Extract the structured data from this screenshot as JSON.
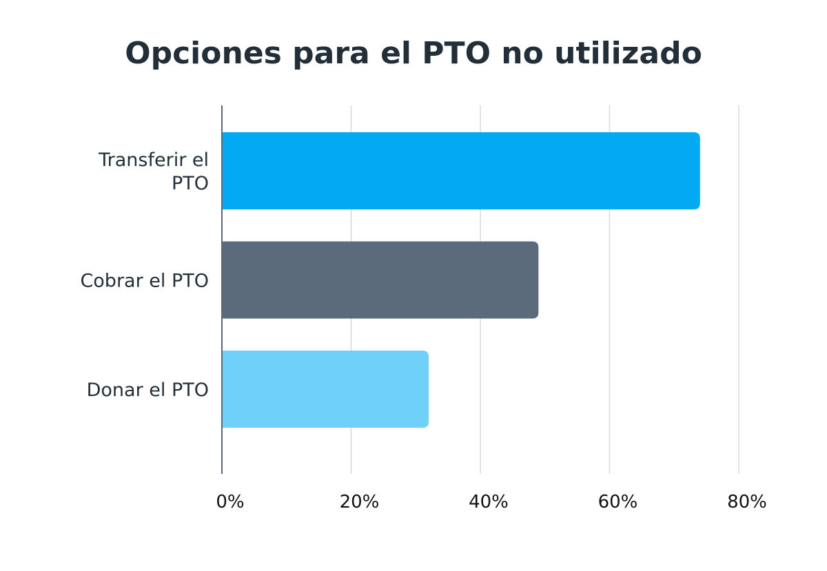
{
  "chart_data": {
    "type": "bar",
    "orientation": "horizontal",
    "title": "Opciones para el PTO no utilizado",
    "categories": [
      "Transferir el PTO",
      "Cobrar el PTO",
      "Donar el PTO"
    ],
    "category_lines": [
      [
        "Transferir el",
        "PTO"
      ],
      [
        "Cobrar el PTO"
      ],
      [
        "Donar el PTO"
      ]
    ],
    "values": [
      74,
      49,
      32
    ],
    "colors": [
      "#04a9f4",
      "#5b6b7b",
      "#6fd0fa"
    ],
    "xlim": [
      0,
      80
    ],
    "xticks": [
      0,
      20,
      40,
      60,
      80
    ],
    "xtick_labels": [
      "0%",
      "20%",
      "40%",
      "60%",
      "80%"
    ],
    "grid": true,
    "legend": "none"
  }
}
